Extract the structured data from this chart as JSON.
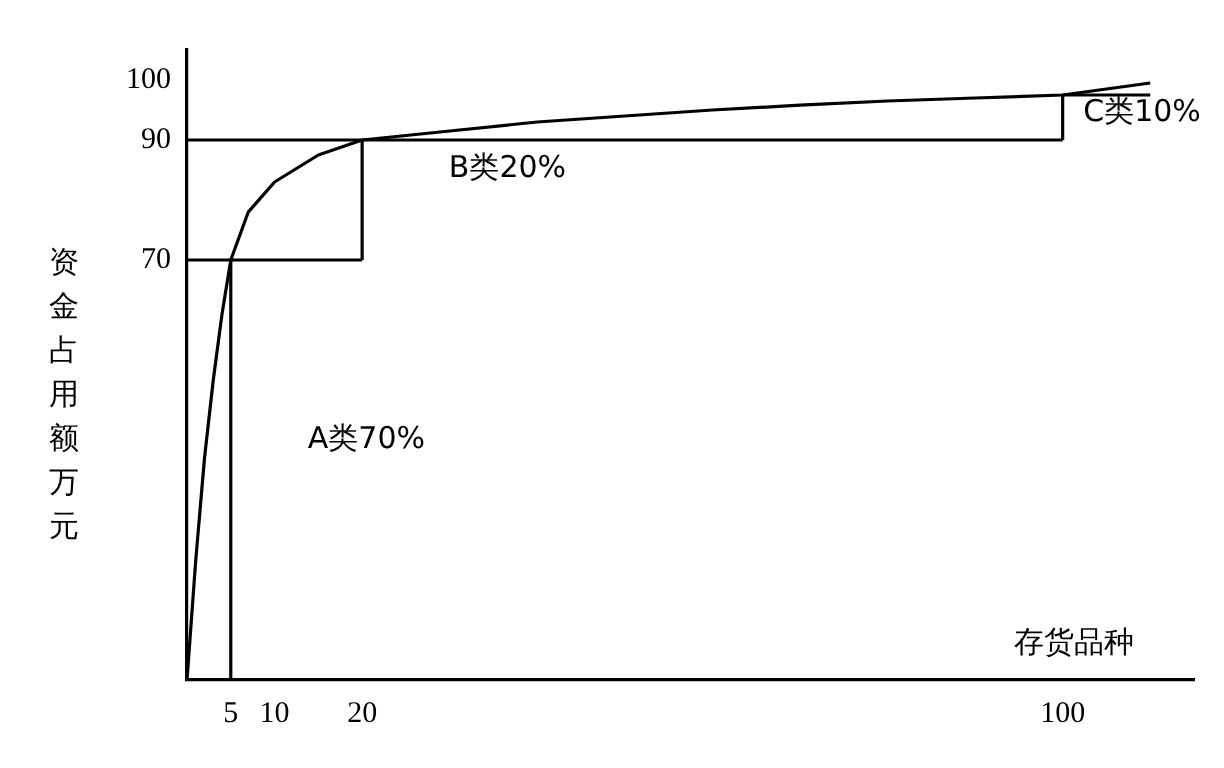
{
  "chart_data": {
    "type": "line",
    "xlabel": "存货品种",
    "ylabel": "资金占用额万元",
    "xlim": [
      0,
      115
    ],
    "ylim": [
      0,
      105
    ],
    "xticks": [
      5,
      10,
      20,
      100
    ],
    "yticks": [
      70,
      90,
      100
    ],
    "grid": false,
    "legend": false,
    "marker": "none",
    "series": [
      {
        "color": "#000000",
        "x": [
          0,
          0.5,
          1,
          2,
          3,
          4,
          5,
          7,
          10,
          15,
          20,
          30,
          40,
          50,
          60,
          70,
          80,
          90,
          100,
          110
        ],
        "values": [
          0,
          10,
          20,
          37,
          50,
          61,
          70,
          78,
          83,
          87.5,
          90,
          91.5,
          93,
          94,
          95,
          95.8,
          96.5,
          97,
          97.5,
          99.5
        ]
      },
      {
        "color": "#000000",
        "x": [
          5,
          5
        ],
        "values": [
          0,
          70
        ]
      },
      {
        "color": "#000000",
        "x": [
          0,
          20
        ],
        "values": [
          70,
          70
        ]
      },
      {
        "color": "#000000",
        "x": [
          20,
          20
        ],
        "values": [
          70,
          90
        ]
      },
      {
        "color": "#000000",
        "x": [
          0,
          100
        ],
        "values": [
          90,
          90
        ]
      },
      {
        "color": "#000000",
        "x": [
          100,
          100
        ],
        "values": [
          90,
          97.5
        ]
      },
      {
        "color": "#000000",
        "x": [
          100,
          110
        ],
        "values": [
          97.5,
          97.5
        ]
      }
    ],
    "annotations": [
      "A类70%",
      "B类20%",
      "C类10%"
    ]
  }
}
